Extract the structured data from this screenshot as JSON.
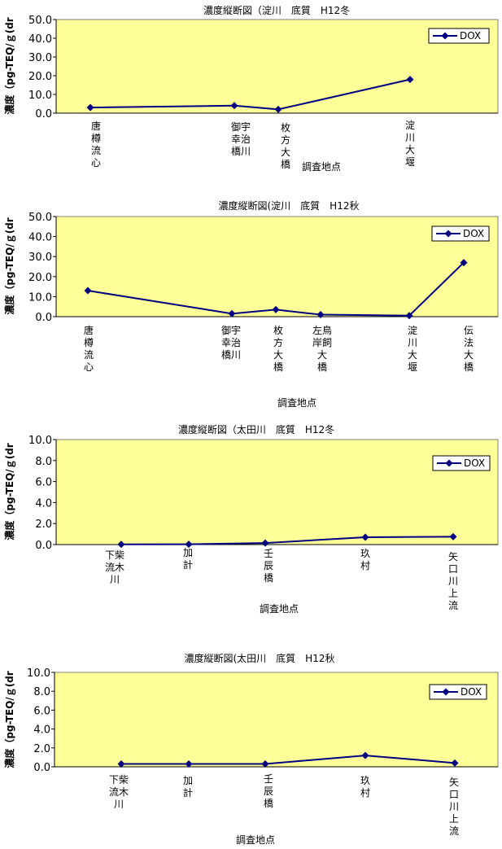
{
  "chart_data": [
    {
      "type": "line",
      "title": "濃度縦断図（淀川　底質　H12冬",
      "ylabel": "濃度（pg-TEQ/ｇ(dr",
      "xlabel": "調査地点",
      "ylim": [
        0,
        50
      ],
      "yticks": [
        "0.0",
        "10.0",
        "20.0",
        "30.0",
        "40.0",
        "50.0"
      ],
      "grid": false,
      "legend": "top-right",
      "categories": [
        [
          "唐",
          "樽",
          "流",
          "心"
        ],
        [
          "御宇",
          "幸治",
          "橋川"
        ],
        [
          "枚",
          "方",
          "大",
          "橋"
        ],
        [
          "淀",
          "川",
          "大",
          "堰"
        ]
      ],
      "x": [
        0,
        4,
        5,
        8
      ],
      "series": [
        {
          "name": "DOX",
          "values": [
            3.0,
            4.0,
            2.0,
            18.0
          ]
        }
      ]
    },
    {
      "type": "line",
      "title": "濃度縦断図(淀川　底質　H12秋",
      "ylabel": "濃度（pg-TEQ/ｇ(dr",
      "xlabel": "調査地点",
      "ylim": [
        0,
        50
      ],
      "yticks": [
        "0.0",
        "10.0",
        "20.0",
        "30.0",
        "40.0",
        "50.0"
      ],
      "grid": false,
      "legend": "top-right",
      "categories": [
        [
          "唐",
          "樽",
          "流",
          "心"
        ],
        [
          "御宇",
          "幸治",
          "橋川"
        ],
        [
          "枚",
          "方",
          "大",
          "橋"
        ],
        [
          "左鳥",
          "岸飼",
          "大",
          "橋"
        ],
        [
          "淀",
          "川",
          "大",
          "堰"
        ],
        [
          "伝",
          "法",
          "大",
          "橋"
        ]
      ],
      "x": [
        0,
        5,
        7,
        9,
        12,
        14
      ],
      "series": [
        {
          "name": "DOX",
          "values": [
            13.0,
            1.5,
            3.5,
            1.0,
            0.5,
            27.0
          ]
        }
      ]
    },
    {
      "type": "line",
      "title": "濃度縦断図（太田川　底質　H12冬",
      "ylabel": "濃度（pg-TEQ/ｇ(dr",
      "xlabel": "調査地点",
      "ylim": [
        0,
        10
      ],
      "yticks": [
        "0.0",
        "2.0",
        "4.0",
        "6.0",
        "8.0",
        "10.0"
      ],
      "grid": false,
      "legend": "top-right",
      "categories": [
        [
          "下柴",
          "流木",
          "川"
        ],
        [
          "加",
          "計"
        ],
        [
          "壬",
          "辰",
          "橋"
        ],
        [
          "玖",
          "村"
        ],
        [
          "矢",
          "口",
          "川",
          "上",
          "流"
        ]
      ],
      "x": [
        0,
        1,
        2,
        3,
        4
      ],
      "series": [
        {
          "name": "DOX",
          "values": [
            0.02,
            0.03,
            0.15,
            0.7,
            0.75
          ]
        }
      ]
    },
    {
      "type": "line",
      "title": "濃度縦断図(太田川　底質　H12秋",
      "ylabel": "濃度（pg-TEQ/ｇ(dr",
      "xlabel": "調査地点",
      "ylim": [
        0,
        10
      ],
      "yticks": [
        "0.0",
        "2.0",
        "4.0",
        "6.0",
        "8.0",
        "10.0"
      ],
      "grid": false,
      "legend": "top-right",
      "categories": [
        [
          "下柴",
          "流木",
          "川"
        ],
        [
          "加",
          "計"
        ],
        [
          "壬",
          "辰",
          "橋"
        ],
        [
          "玖",
          "村"
        ],
        [
          "矢",
          "口",
          "川",
          "上",
          "流"
        ]
      ],
      "x": [
        0,
        1,
        2,
        3,
        4
      ],
      "series": [
        {
          "name": "DOX",
          "values": [
            0.3,
            0.3,
            0.3,
            1.2,
            0.4
          ]
        }
      ]
    }
  ],
  "colors": {
    "plot_background": "#ffff99",
    "series": "#000080",
    "axis": "#000000"
  }
}
